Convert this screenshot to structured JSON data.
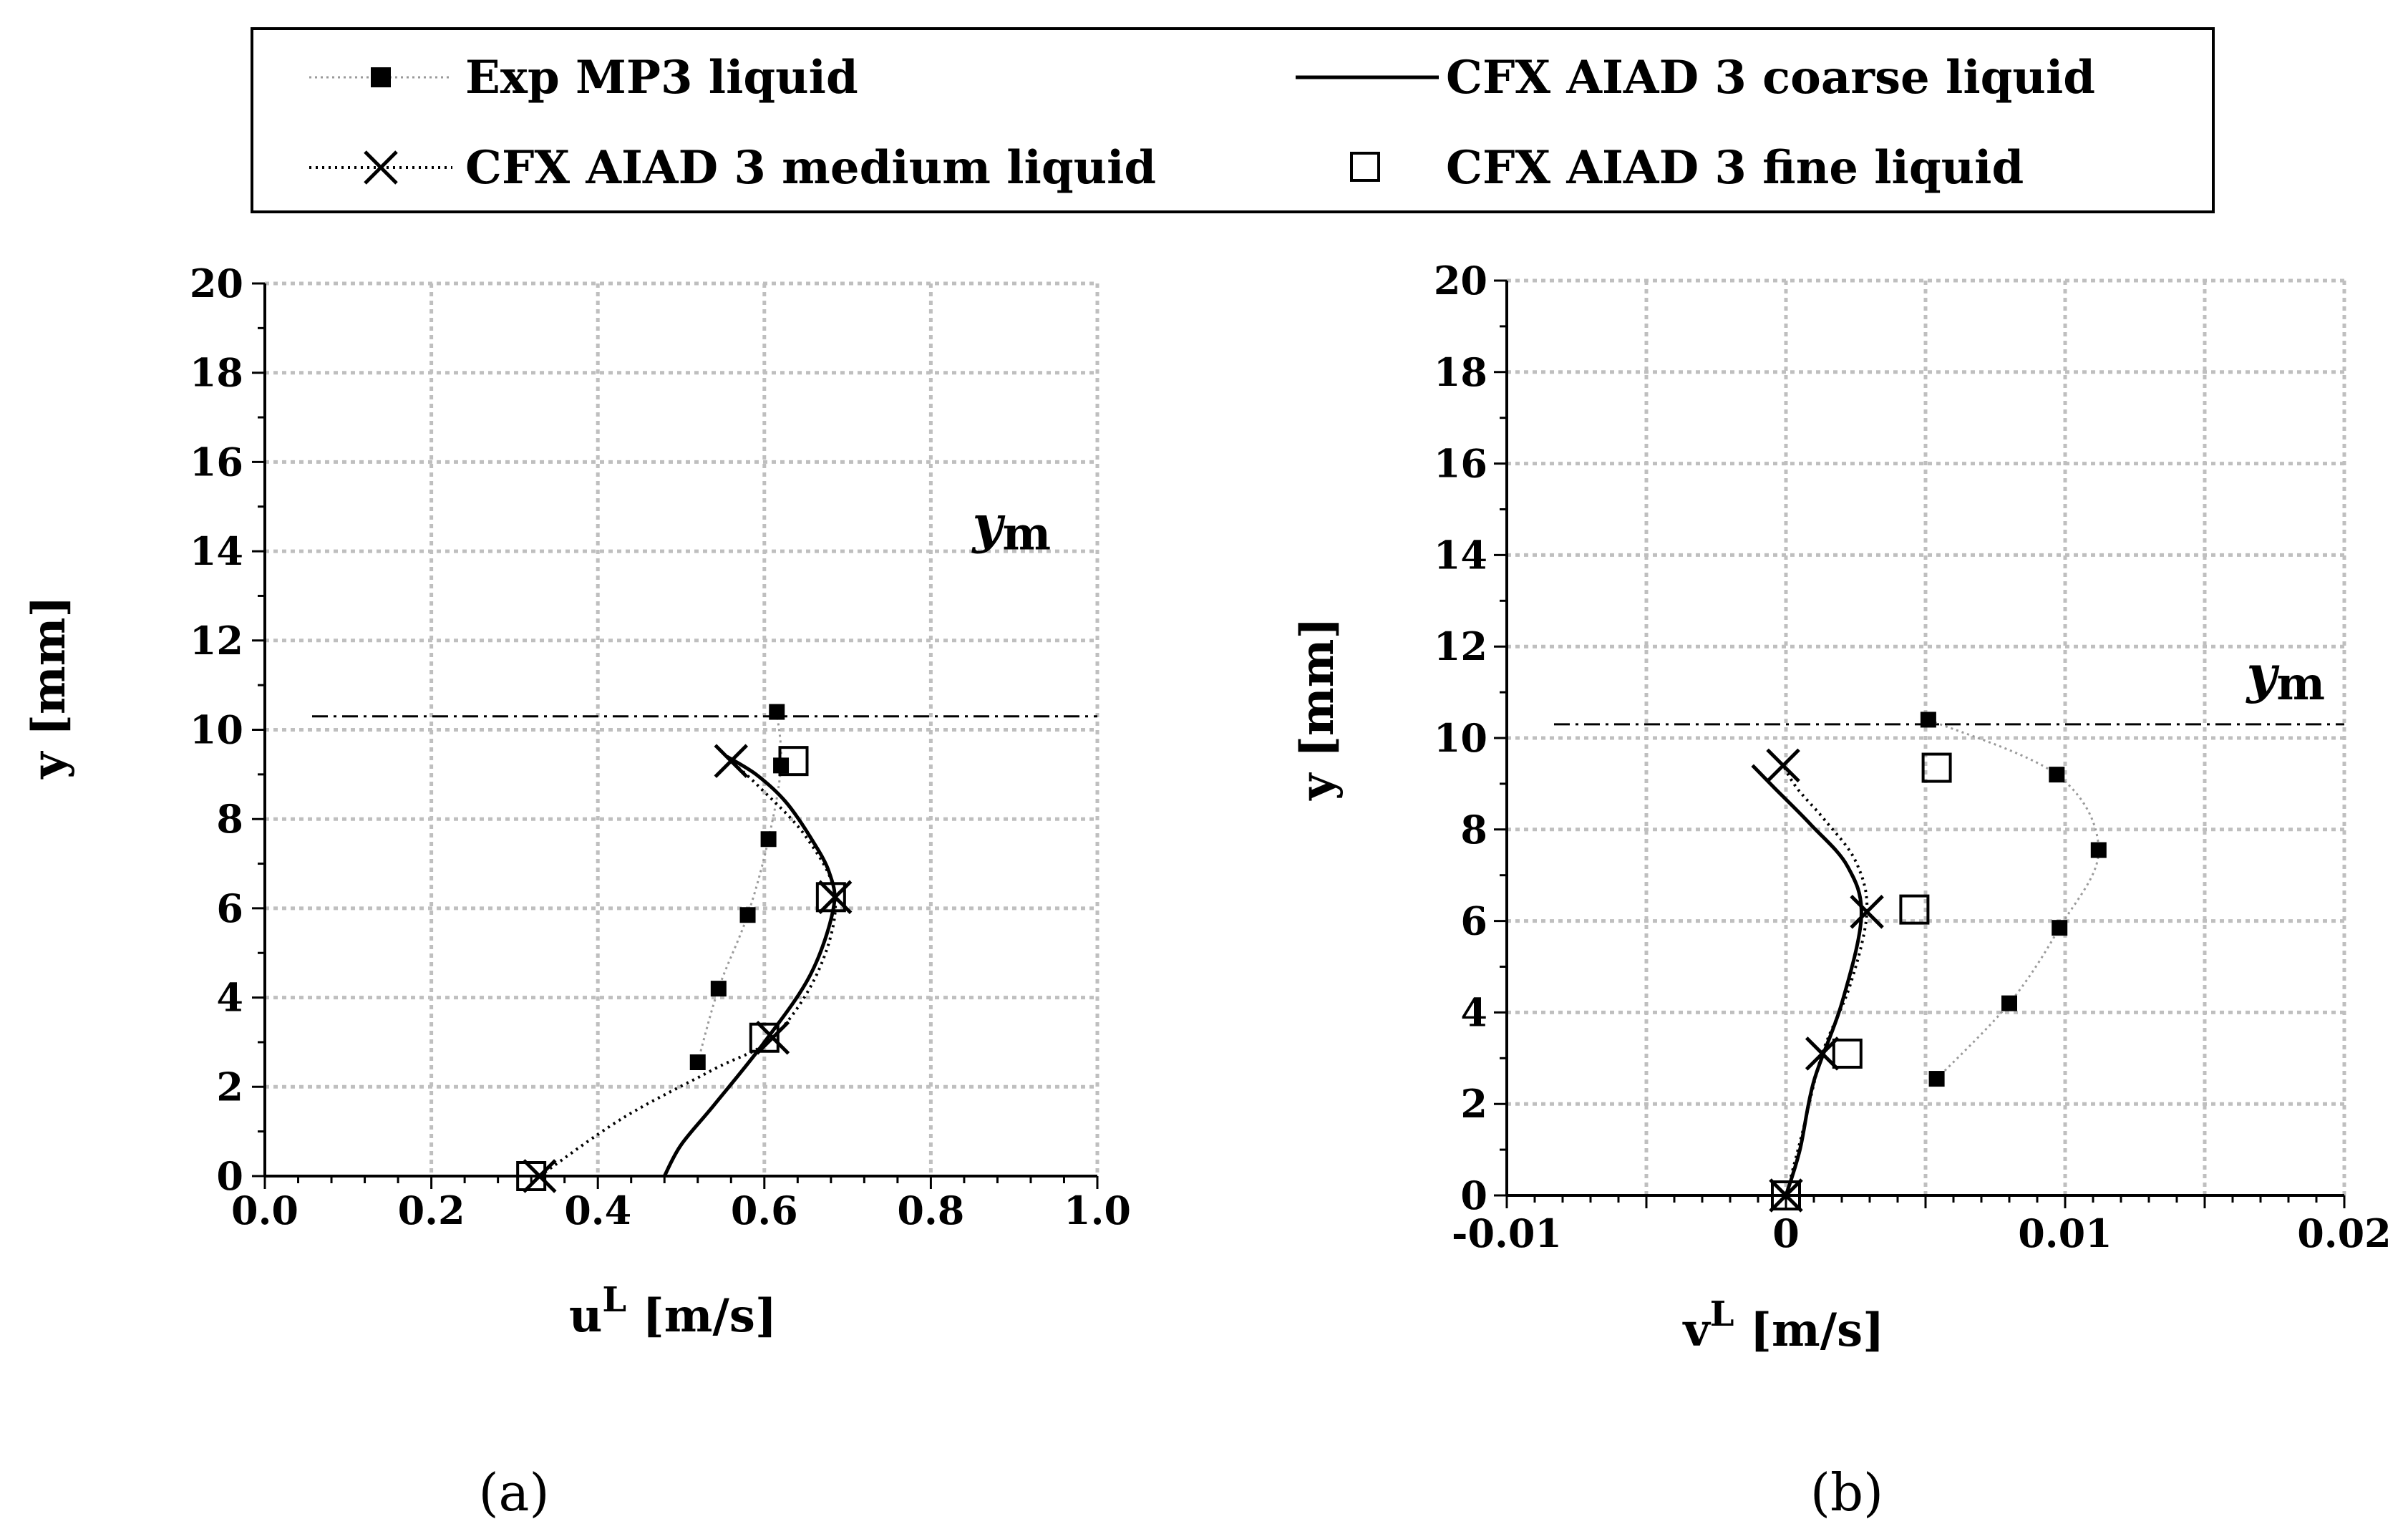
{
  "legend": {
    "entries": [
      {
        "label": "Exp MP3 liquid",
        "marker": "filled-square-marker",
        "line": "thin-dotted-grey"
      },
      {
        "label": "CFX AIAD 3 coarse liquid",
        "marker": "none",
        "line": "solid-black"
      },
      {
        "label": "CFX AIAD 3 medium liquid",
        "marker": "x-marker",
        "line": "dotted-black"
      },
      {
        "label": "CFX AIAD 3 fine liquid",
        "marker": "open-square-marker",
        "line": "none"
      }
    ]
  },
  "colors": {
    "axis": "#000000",
    "grid": "#bfbfbf",
    "experiment_line": "#9a9a9a",
    "model_line": "#000000",
    "background": "#ffffff"
  },
  "chart_data": [
    {
      "type": "line",
      "panel_label": "(a)",
      "xlabel": "u",
      "xlabel_sup": "L",
      "xlabel_unit": " [m/s]",
      "ylabel": "y [mm]",
      "xlim": [
        0,
        1
      ],
      "ylim": [
        0,
        20
      ],
      "xticks": [
        0.0,
        0.2,
        0.4,
        0.6,
        0.8,
        1.0
      ],
      "xtick_labels": [
        "0.0",
        "0.2",
        "0.4",
        "0.6",
        "0.8",
        "1.0"
      ],
      "yticks": [
        0,
        2,
        4,
        6,
        8,
        10,
        12,
        14,
        16,
        18,
        20
      ],
      "ytick_labels": [
        "0",
        "2",
        "4",
        "6",
        "8",
        "10",
        "12",
        "14",
        "16",
        "18",
        "20"
      ],
      "grid": true,
      "ref_line": {
        "y": 10.3,
        "label": "y",
        "label_sub": "m",
        "label_at": [
          0.85,
          14.2
        ]
      },
      "series": [
        {
          "name": "Exp MP3 liquid",
          "x": [
            0.52,
            0.545,
            0.58,
            0.605,
            0.62,
            0.615
          ],
          "y": [
            2.55,
            4.2,
            5.85,
            7.55,
            9.2,
            10.4
          ]
        },
        {
          "name": "CFX AIAD 3 coarse liquid",
          "x": [
            0.48,
            0.5,
            0.54,
            0.6,
            0.655,
            0.683,
            0.678,
            0.655,
            0.625,
            0.59,
            0.555
          ],
          "y": [
            0.0,
            0.7,
            1.6,
            3.0,
            4.5,
            6.0,
            6.8,
            7.6,
            8.4,
            9.0,
            9.4
          ]
        },
        {
          "name": "CFX AIAD 3 medium liquid",
          "x": [
            0.33,
            0.43,
            0.54,
            0.61,
            0.665,
            0.685,
            0.65,
            0.595,
            0.56
          ],
          "y": [
            0.0,
            1.3,
            2.4,
            3.1,
            4.6,
            6.25,
            7.6,
            8.7,
            9.3
          ]
        },
        {
          "name": "CFX AIAD 3 fine liquid",
          "x": [
            0.32,
            0.6,
            0.68,
            0.635
          ],
          "y": [
            0.0,
            3.1,
            6.25,
            9.3
          ]
        }
      ],
      "medium_markers": {
        "x": [
          0.33,
          0.61,
          0.685,
          0.56
        ],
        "y": [
          0.0,
          3.1,
          6.25,
          9.3
        ]
      }
    },
    {
      "type": "line",
      "panel_label": "(b)",
      "xlabel": "v",
      "xlabel_sup": "L",
      "xlabel_unit": " [m/s]",
      "ylabel": "y [mm]",
      "xlim": [
        -0.01,
        0.02
      ],
      "ylim": [
        0,
        20
      ],
      "xticks": [
        -0.01,
        -0.005,
        0,
        0.005,
        0.01,
        0.015,
        0.02
      ],
      "xtick_labels": [
        "-0.01",
        "",
        "0",
        "",
        "0.01",
        "",
        "0.02"
      ],
      "yticks": [
        0,
        2,
        4,
        6,
        8,
        10,
        12,
        14,
        16,
        18,
        20
      ],
      "ytick_labels": [
        "0",
        "2",
        "4",
        "6",
        "8",
        "10",
        "12",
        "14",
        "16",
        "18",
        "20"
      ],
      "grid": true,
      "ref_line": {
        "y": 10.3,
        "label": "y",
        "label_sub": "m",
        "label_at": [
          0.0165,
          11.0
        ]
      },
      "series": [
        {
          "name": "Exp MP3 liquid",
          "x": [
            0.0054,
            0.008,
            0.0098,
            0.0112,
            0.0097,
            0.0051
          ],
          "y": [
            2.55,
            4.2,
            5.85,
            7.55,
            9.2,
            10.4
          ]
        },
        {
          "name": "CFX AIAD 3 coarse liquid",
          "x": [
            0.0,
            0.0005,
            0.001,
            0.002,
            0.0027,
            0.0022,
            0.0009,
            -0.0004,
            -0.0012
          ],
          "y": [
            0.0,
            1.0,
            2.5,
            4.2,
            6.1,
            7.2,
            8.1,
            8.9,
            9.4
          ]
        },
        {
          "name": "CFX AIAD 3 medium liquid",
          "x": [
            0.0,
            0.0006,
            0.0013,
            0.0023,
            0.0029,
            0.0025,
            0.0014,
            0.0004,
            -0.0001
          ],
          "y": [
            0.0,
            1.4,
            3.1,
            4.6,
            6.2,
            7.3,
            8.2,
            8.9,
            9.4
          ]
        },
        {
          "name": "CFX AIAD 3 fine liquid",
          "x": [
            0.0,
            0.0022,
            0.0046,
            0.0054
          ],
          "y": [
            0.0,
            3.1,
            6.25,
            9.35
          ]
        }
      ],
      "medium_markers": {
        "x": [
          0.0,
          0.0013,
          0.0029,
          -0.0001
        ],
        "y": [
          0.0,
          3.1,
          6.2,
          9.4
        ]
      }
    }
  ]
}
